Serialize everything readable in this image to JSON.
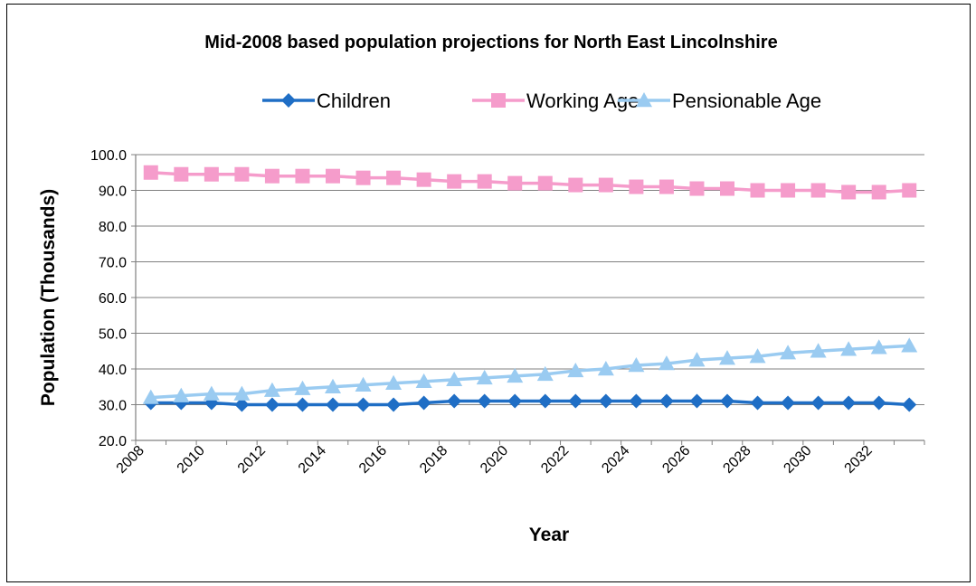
{
  "chart_data": {
    "type": "line",
    "title": "Mid-2008 based population projections for North East Lincolnshire",
    "xlabel": "Year",
    "ylabel": "Population (Thousands)",
    "ylim": [
      20,
      100
    ],
    "yticks": [
      "20.0",
      "30.0",
      "40.0",
      "50.0",
      "60.0",
      "70.0",
      "80.0",
      "90.0",
      "100.0"
    ],
    "x": [
      2008,
      2009,
      2010,
      2011,
      2012,
      2013,
      2014,
      2015,
      2016,
      2017,
      2018,
      2019,
      2020,
      2021,
      2022,
      2023,
      2024,
      2025,
      2026,
      2027,
      2028,
      2029,
      2030,
      2031,
      2032,
      2033
    ],
    "xtick_labels": [
      "2008",
      "2010",
      "2012",
      "2014",
      "2016",
      "2018",
      "2020",
      "2022",
      "2024",
      "2026",
      "2028",
      "2030",
      "2032"
    ],
    "grid": "horizontal",
    "legend_position": "top",
    "series": [
      {
        "name": "Children",
        "color": "#1F6EC5",
        "marker": "diamond",
        "values": [
          30.5,
          30.5,
          30.5,
          30.0,
          30.0,
          30.0,
          30.0,
          30.0,
          30.0,
          30.5,
          31.0,
          31.0,
          31.0,
          31.0,
          31.0,
          31.0,
          31.0,
          31.0,
          31.0,
          31.0,
          30.5,
          30.5,
          30.5,
          30.5,
          30.5,
          30.0
        ]
      },
      {
        "name": "Working Age",
        "color": "#F59CCB",
        "marker": "square",
        "values": [
          95.0,
          94.5,
          94.5,
          94.5,
          94.0,
          94.0,
          94.0,
          93.5,
          93.5,
          93.0,
          92.5,
          92.5,
          92.0,
          92.0,
          91.5,
          91.5,
          91.0,
          91.0,
          90.5,
          90.5,
          90.0,
          90.0,
          90.0,
          89.5,
          89.5,
          90.0
        ]
      },
      {
        "name": "Pensionable Age",
        "color": "#9ACBF1",
        "marker": "triangle",
        "values": [
          32.0,
          32.5,
          33.0,
          33.0,
          34.0,
          34.5,
          35.0,
          35.5,
          36.0,
          36.5,
          37.0,
          37.5,
          38.0,
          38.5,
          39.5,
          40.0,
          41.0,
          41.5,
          42.5,
          43.0,
          43.5,
          44.5,
          45.0,
          45.5,
          46.0,
          46.5
        ]
      }
    ]
  }
}
